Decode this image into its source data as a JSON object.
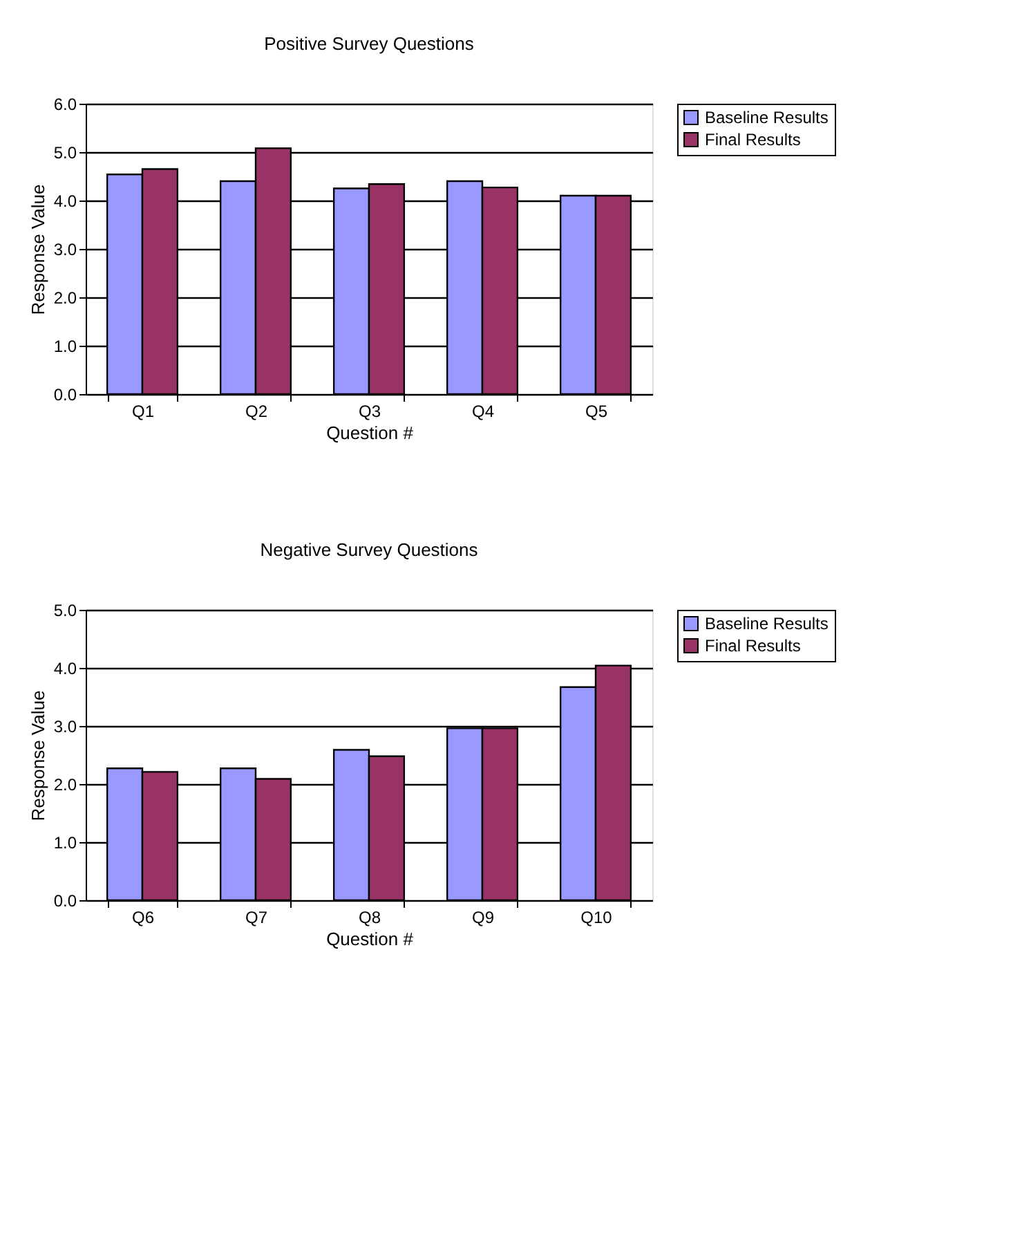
{
  "chart_data": [
    {
      "type": "bar",
      "title": "Positive Survey Questions",
      "xlabel": "Question #",
      "ylabel": "Response Value",
      "categories": [
        "Q1",
        "Q2",
        "Q3",
        "Q4",
        "Q5"
      ],
      "series": [
        {
          "name": "Baseline Results",
          "color": "#9999ff",
          "values": [
            4.54,
            4.4,
            4.25,
            4.4,
            4.1
          ]
        },
        {
          "name": "Final Results",
          "color": "#993366",
          "values": [
            4.65,
            5.08,
            4.34,
            4.27,
            4.1
          ]
        }
      ],
      "ylim": [
        0,
        6
      ],
      "yticks": [
        {
          "value": 0,
          "label": "0.0"
        },
        {
          "value": 1,
          "label": "1.0"
        },
        {
          "value": 2,
          "label": "2.0"
        },
        {
          "value": 3,
          "label": "3.0"
        },
        {
          "value": 4,
          "label": "4.0"
        },
        {
          "value": 5,
          "label": "5.0"
        },
        {
          "value": 6,
          "label": "6.0"
        }
      ],
      "grid": "y",
      "legend": "right"
    },
    {
      "type": "bar",
      "title": "Negative Survey Questions",
      "xlabel": "Question #",
      "ylabel": "Response Value",
      "categories": [
        "Q6",
        "Q7",
        "Q8",
        "Q9",
        "Q10"
      ],
      "series": [
        {
          "name": "Baseline Results",
          "color": "#9999ff",
          "values": [
            2.27,
            2.27,
            2.59,
            2.96,
            3.67
          ]
        },
        {
          "name": "Final Results",
          "color": "#993366",
          "values": [
            2.21,
            2.09,
            2.48,
            2.96,
            4.04
          ]
        }
      ],
      "ylim": [
        0,
        5
      ],
      "yticks": [
        {
          "value": 0,
          "label": "0.0"
        },
        {
          "value": 1,
          "label": "1.0"
        },
        {
          "value": 2,
          "label": "2.0"
        },
        {
          "value": 3,
          "label": "3.0"
        },
        {
          "value": 4,
          "label": "4.0"
        },
        {
          "value": 5,
          "label": "5.0"
        }
      ],
      "grid": "y",
      "legend": "right"
    }
  ]
}
